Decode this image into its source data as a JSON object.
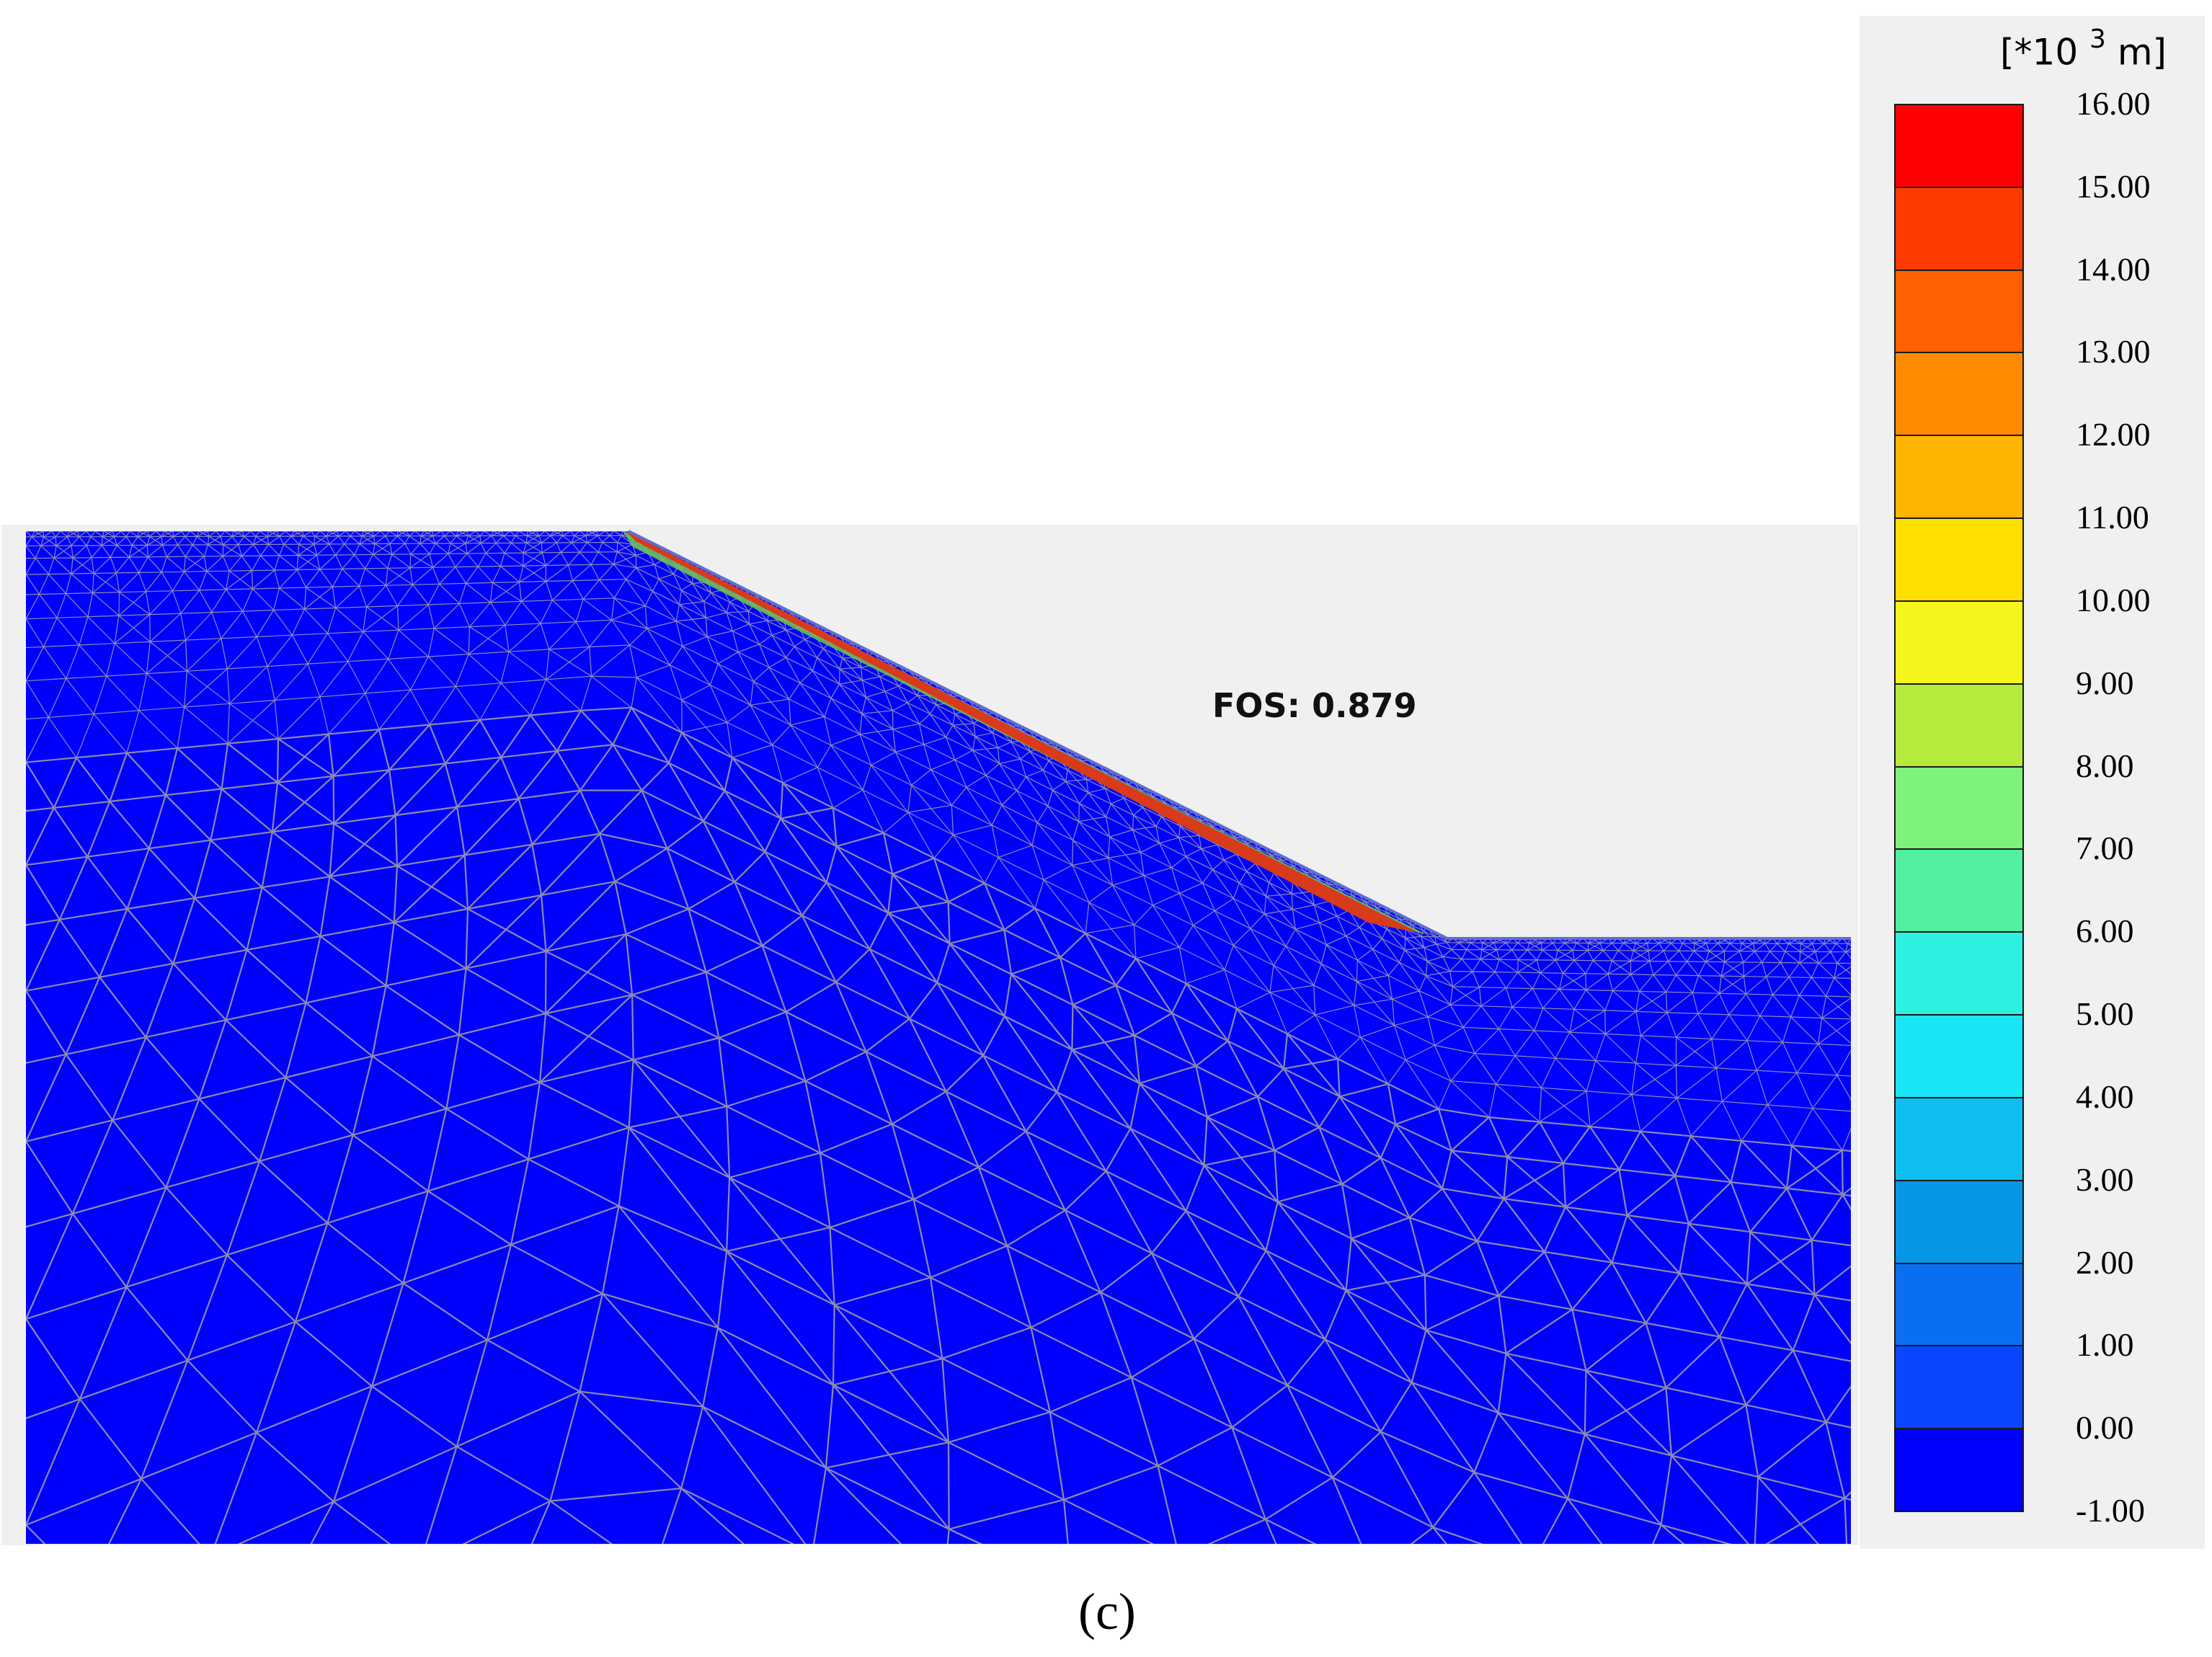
{
  "result": {
    "fos_label": "FOS: 0.879",
    "caption": "(c)",
    "colors": {
      "soil": "#0000ff",
      "background": "#f0f0f0",
      "mesh_lines": "#8a8ab4",
      "surface_band": [
        "#d93a1a",
        "#6ec850"
      ]
    }
  },
  "legend": {
    "unit_prefix": "[*10",
    "unit_exp": "3",
    "unit_suffix": " m]",
    "labels": [
      "16.00",
      "15.00",
      "14.00",
      "13.00",
      "12.00",
      "11.00",
      "10.00",
      "9.00",
      "8.00",
      "7.00",
      "6.00",
      "5.00",
      "4.00",
      "3.00",
      "2.00",
      "1.00",
      "0.00",
      "-1.00"
    ],
    "colors": [
      "#ff0000",
      "#ff3a00",
      "#ff6000",
      "#ff8a00",
      "#ffb400",
      "#ffdf00",
      "#f5f51e",
      "#b4eb3c",
      "#7ef27a",
      "#50f0a0",
      "#2df0e0",
      "#19e6f5",
      "#0fbef0",
      "#0896e6",
      "#0a6ef0",
      "#0a46ff",
      "#0000ff"
    ]
  }
}
